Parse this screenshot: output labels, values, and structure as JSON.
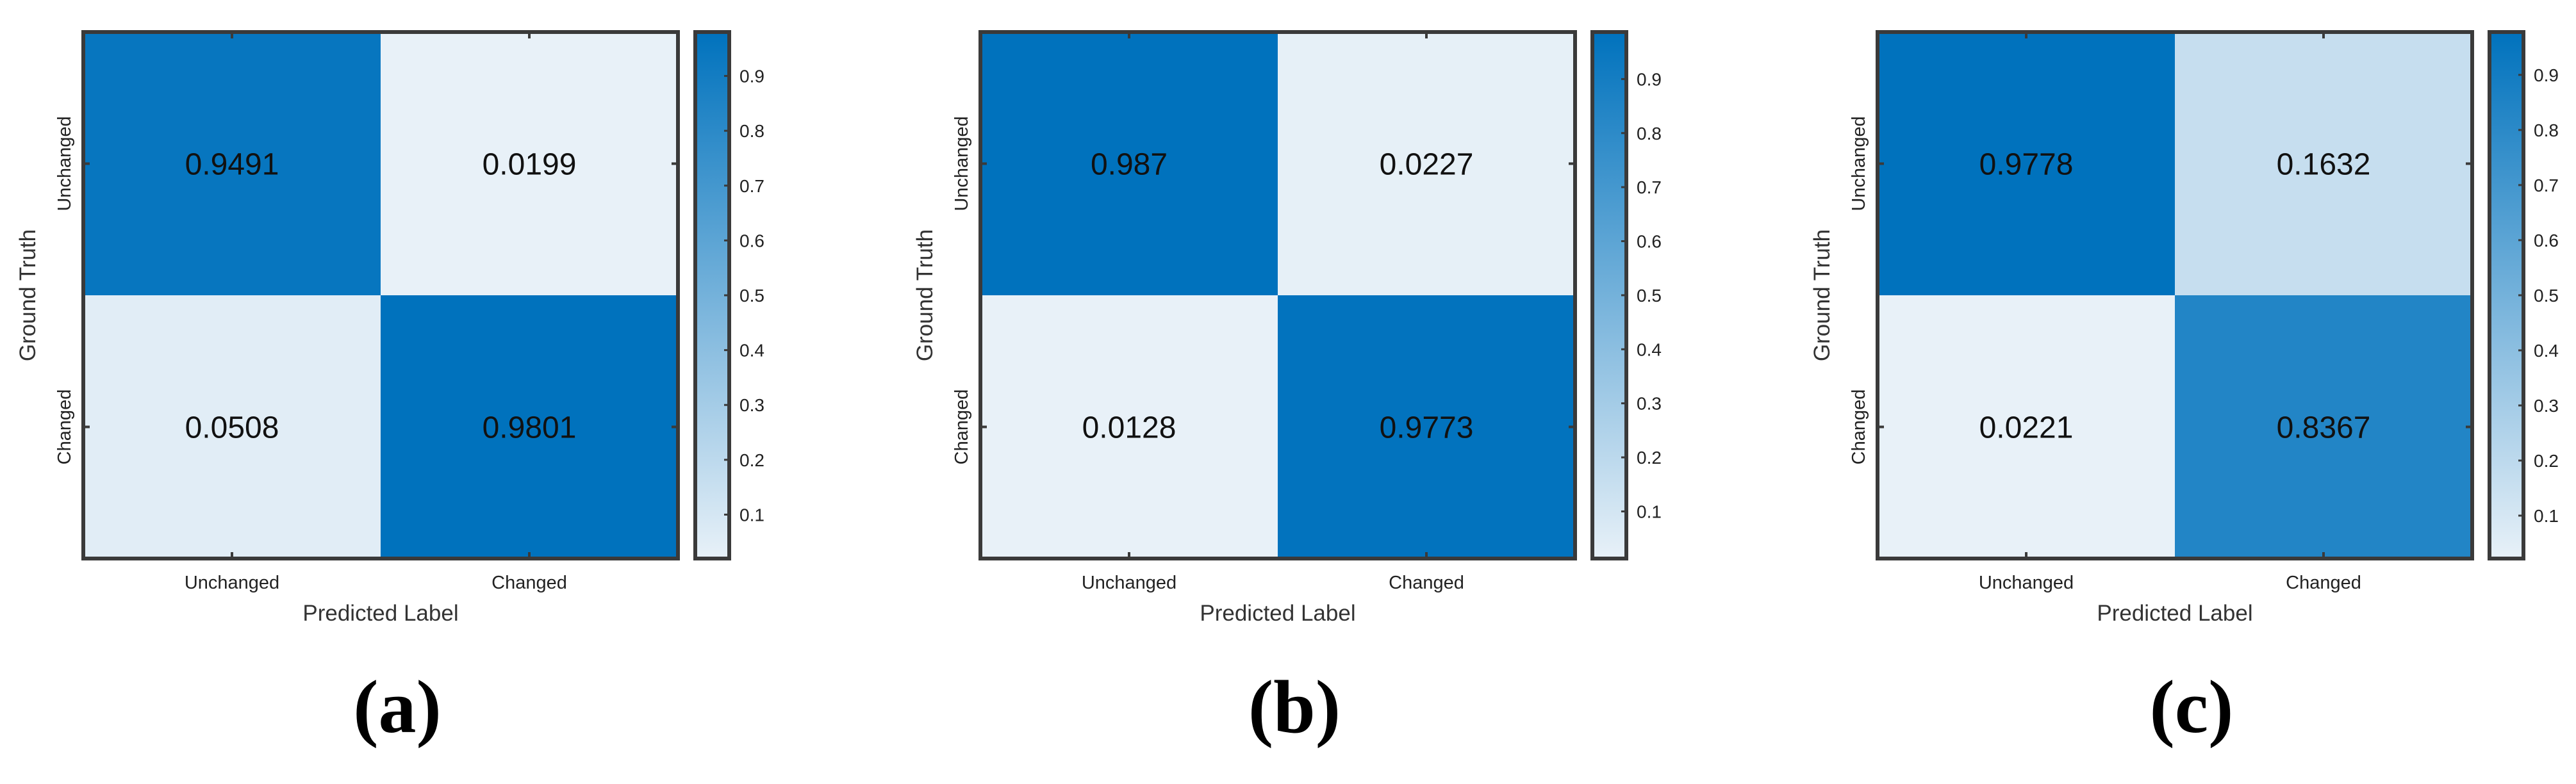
{
  "chart_data": [
    {
      "type": "heatmap",
      "panel_label": "(a)",
      "xlabel": "Predicted Label",
      "ylabel": "Ground Truth",
      "x_categories": [
        "Unchanged",
        "Changed"
      ],
      "y_categories": [
        "Unchanged",
        "Changed"
      ],
      "values": [
        [
          0.9491,
          0.0199
        ],
        [
          0.0508,
          0.9801
        ]
      ],
      "value_labels": [
        [
          "0.9491",
          "0.0199"
        ],
        [
          "0.0508",
          "0.9801"
        ]
      ],
      "colorbar": {
        "ticks": [
          "0.1",
          "0.2",
          "0.3",
          "0.4",
          "0.5",
          "0.6",
          "0.7",
          "0.8",
          "0.9"
        ],
        "range": [
          0.0199,
          0.9801
        ]
      },
      "colors": {
        "low": "#e8f1f8",
        "high": "#0072bd"
      }
    },
    {
      "type": "heatmap",
      "panel_label": "(b)",
      "xlabel": "Predicted Label",
      "ylabel": "Ground Truth",
      "x_categories": [
        "Unchanged",
        "Changed"
      ],
      "y_categories": [
        "Unchanged",
        "Changed"
      ],
      "values": [
        [
          0.987,
          0.0227
        ],
        [
          0.0128,
          0.9773
        ]
      ],
      "value_labels": [
        [
          "0.987",
          "0.0227"
        ],
        [
          "0.0128",
          "0.9773"
        ]
      ],
      "colorbar": {
        "ticks": [
          "0.1",
          "0.2",
          "0.3",
          "0.4",
          "0.5",
          "0.6",
          "0.7",
          "0.8",
          "0.9"
        ],
        "range": [
          0.0128,
          0.987
        ]
      },
      "colors": {
        "low": "#e8f1f8",
        "high": "#0072bd"
      }
    },
    {
      "type": "heatmap",
      "panel_label": "(c)",
      "xlabel": "Predicted Label",
      "ylabel": "Ground Truth",
      "x_categories": [
        "Unchanged",
        "Changed"
      ],
      "y_categories": [
        "Unchanged",
        "Changed"
      ],
      "values": [
        [
          0.9778,
          0.1632
        ],
        [
          0.0221,
          0.8367
        ]
      ],
      "value_labels": [
        [
          "0.9778",
          "0.1632"
        ],
        [
          "0.0221",
          "0.8367"
        ]
      ],
      "colorbar": {
        "ticks": [
          "0.1",
          "0.2",
          "0.3",
          "0.4",
          "0.5",
          "0.6",
          "0.7",
          "0.8",
          "0.9"
        ],
        "range": [
          0.0221,
          0.9778
        ]
      },
      "colors": {
        "low": "#e8f1f8",
        "high": "#0072bd"
      }
    }
  ]
}
